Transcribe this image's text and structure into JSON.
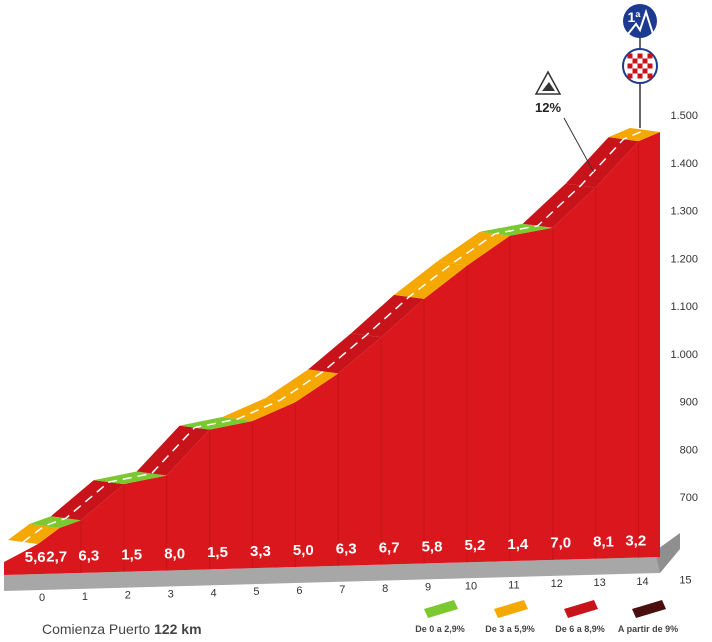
{
  "chart_data": {
    "type": "area",
    "title": "",
    "xlabel": "",
    "ylabel": "",
    "x": [
      0,
      1,
      2,
      3,
      4,
      5,
      6,
      7,
      8,
      9,
      10,
      11,
      12,
      13,
      14,
      15
    ],
    "x_tick_labels": [
      "0",
      "1",
      "2",
      "3",
      "4",
      "5",
      "6",
      "7",
      "8",
      "9",
      "10",
      "11",
      "12",
      "13",
      "14",
      "15"
    ],
    "segments": [
      {
        "start": 0.0,
        "end": 0.5,
        "gradient": 5.6,
        "label": "5,6",
        "color": "#f5a800"
      },
      {
        "start": 0.5,
        "end": 1.0,
        "gradient": 2.7,
        "label": "2,7",
        "color": "#7cc830"
      },
      {
        "start": 1.0,
        "end": 2.0,
        "gradient": 6.3,
        "label": "6,3",
        "color": "#c8131b"
      },
      {
        "start": 2.0,
        "end": 3.0,
        "gradient": 1.5,
        "label": "1,5",
        "color": "#7cc830"
      },
      {
        "start": 3.0,
        "end": 4.0,
        "gradient": 8.0,
        "label": "8,0",
        "color": "#c8131b"
      },
      {
        "start": 4.0,
        "end": 5.0,
        "gradient": 1.5,
        "label": "1,5",
        "color": "#7cc830"
      },
      {
        "start": 5.0,
        "end": 6.0,
        "gradient": 3.3,
        "label": "3,3",
        "color": "#f5a800"
      },
      {
        "start": 6.0,
        "end": 7.0,
        "gradient": 5.0,
        "label": "5,0",
        "color": "#f5a800"
      },
      {
        "start": 7.0,
        "end": 8.0,
        "gradient": 6.3,
        "label": "6,3",
        "color": "#c8131b"
      },
      {
        "start": 8.0,
        "end": 9.0,
        "gradient": 6.7,
        "label": "6,7",
        "color": "#c8131b"
      },
      {
        "start": 9.0,
        "end": 10.0,
        "gradient": 5.8,
        "label": "5,8",
        "color": "#f5a800"
      },
      {
        "start": 10.0,
        "end": 11.0,
        "gradient": 5.2,
        "label": "5,2",
        "color": "#f5a800"
      },
      {
        "start": 11.0,
        "end": 12.0,
        "gradient": 1.4,
        "label": "1,4",
        "color": "#7cc830"
      },
      {
        "start": 12.0,
        "end": 13.0,
        "gradient": 7.0,
        "label": "7,0",
        "color": "#c8131b"
      },
      {
        "start": 13.0,
        "end": 14.0,
        "gradient": 8.1,
        "label": "8,1",
        "color": "#c8131b"
      },
      {
        "start": 14.0,
        "end": 14.5,
        "gradient": 3.2,
        "label": "3,2",
        "color": "#f5a800"
      }
    ],
    "altitude_start": 722,
    "y_ticks": [
      "700",
      "800",
      "900",
      "1.000",
      "1.100",
      "1.200",
      "1.300",
      "1.400",
      "1.500"
    ],
    "y_tick_values": [
      700,
      800,
      900,
      1000,
      1100,
      1200,
      1300,
      1400,
      1500
    ],
    "ylim": [
      700,
      1500
    ],
    "xlim": [
      0,
      15
    ],
    "max_gradient_label": "12%",
    "max_gradient_km": 13.3,
    "category_badge": "1ª",
    "legend": [
      {
        "label": "De 0 a 2,9%",
        "color": "#7cc830"
      },
      {
        "label": "De 3 a 5,9%",
        "color": "#f5a800"
      },
      {
        "label": "De 6 a 8,9%",
        "color": "#c8131b"
      },
      {
        "label": "A partir de 9%",
        "color": "#4a0e0e"
      }
    ],
    "footer": {
      "label": "Comienza Puerto",
      "km": "122 km"
    },
    "colors": {
      "body": "#d9171d",
      "grid": "#c4151a",
      "base": "#9a9a9a"
    }
  }
}
